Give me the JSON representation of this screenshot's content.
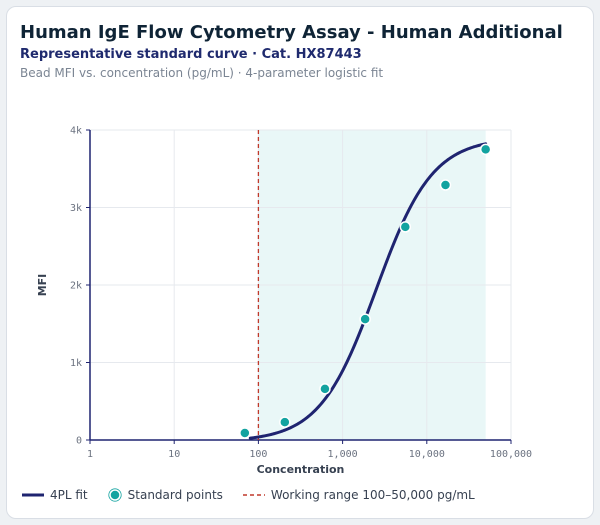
{
  "header": {
    "title": "Human IgE Flow Cytometry Assay - Human Additional",
    "subtitle": "Representative standard curve · Cat. HX87443",
    "description": "Bead MFI vs. concentration (pg/mL) · 4-parameter logistic fit"
  },
  "legend": {
    "fit_label": "4PL fit",
    "points_label": "Standard points",
    "range_label": "Working range 100–50,000 pg/mL"
  },
  "colors": {
    "fit_line": "#1f2470",
    "points": "#13a3a0",
    "range_marker": "#c0392b",
    "range_shade": "#e9f7f7"
  },
  "chart_data": {
    "type": "scatter",
    "xlabel": "Concentration",
    "ylabel": "MFI",
    "x_scale": "log",
    "xlim": [
      1,
      100000
    ],
    "ylim": [
      0,
      4000
    ],
    "x_ticks": [
      1,
      10,
      100,
      1000,
      10000,
      100000
    ],
    "x_tick_labels": [
      "1",
      "10",
      "100",
      "1,000",
      "10,000",
      "100,000"
    ],
    "y_ticks": [
      0,
      1000,
      2000,
      3000,
      4000
    ],
    "y_tick_labels": [
      "0",
      "1k",
      "2k",
      "3k",
      "4k"
    ],
    "grid": true,
    "working_range": [
      100,
      50000
    ],
    "series": [
      {
        "name": "Standard points",
        "type": "scatter",
        "x": [
          69,
          206,
          617,
          1852,
          5556,
          16667,
          50000
        ],
        "y": [
          90,
          230,
          660,
          1560,
          2750,
          3290,
          3750
        ]
      },
      {
        "name": "4PL fit",
        "type": "line",
        "model": "4PL",
        "x_range": [
          80,
          50000
        ],
        "params": {
          "bottom": -20,
          "top": 3900,
          "ec50": 2500,
          "hill": 1.3
        }
      }
    ]
  }
}
